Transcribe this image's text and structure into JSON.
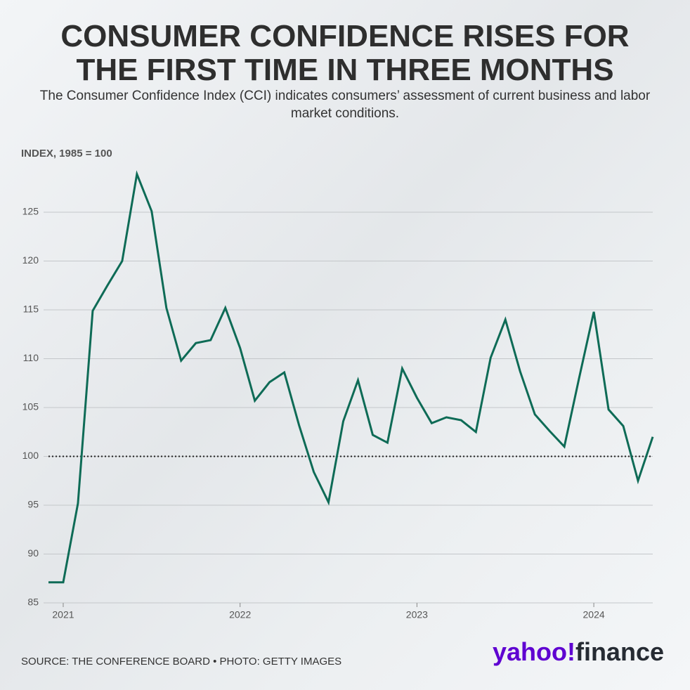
{
  "chart_data": {
    "type": "line",
    "title": "CONSUMER CONFIDENCE RISES FOR THE FIRST TIME IN THREE MONTHS",
    "subtitle": "The Consumer Confidence Index (CCI) indicates consumers’ assessment of current business and labor market conditions.",
    "y_label": "INDEX, 1985 = 100",
    "categories": [
      null,
      "2021",
      null,
      null,
      null,
      null,
      null,
      null,
      null,
      null,
      null,
      null,
      null,
      "2022",
      null,
      null,
      null,
      null,
      null,
      null,
      null,
      null,
      null,
      null,
      null,
      "2023",
      null,
      null,
      null,
      null,
      null,
      null,
      null,
      null,
      null,
      null,
      null,
      "2024",
      null,
      null,
      null,
      null
    ],
    "series": [
      {
        "name": "Consumer Confidence Index",
        "color": "#0e6b56",
        "values": [
          87.1,
          87.1,
          95.2,
          114.9,
          117.5,
          120.0,
          128.9,
          125.1,
          115.2,
          109.8,
          111.6,
          111.9,
          115.2,
          111.1,
          105.7,
          107.6,
          108.6,
          103.2,
          98.4,
          95.3,
          103.6,
          107.8,
          102.2,
          101.4,
          109.0,
          106.0,
          103.4,
          104.0,
          103.7,
          102.5,
          110.1,
          114.0,
          108.7,
          104.3,
          102.6,
          101.0,
          108.0,
          114.8,
          104.8,
          103.1,
          97.5,
          102.0
        ]
      }
    ],
    "ylim": [
      85,
      130
    ],
    "yticks": [
      85,
      90,
      95,
      100,
      105,
      110,
      115,
      120,
      125
    ],
    "reference_line": 100,
    "grid": true,
    "source": "SOURCE: THE CONFERENCE BOARD • PHOTO: GETTY IMAGES",
    "logo_brand": "yahoo!",
    "logo_product": "finance"
  }
}
